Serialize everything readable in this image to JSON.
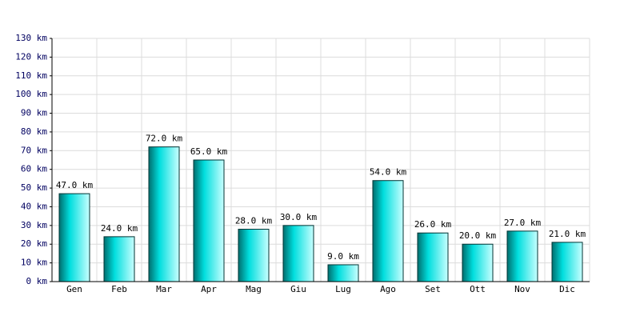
{
  "chart_data": {
    "type": "bar",
    "categories": [
      "Gen",
      "Feb",
      "Mar",
      "Apr",
      "Mag",
      "Giu",
      "Lug",
      "Ago",
      "Set",
      "Ott",
      "Nov",
      "Dic"
    ],
    "values": [
      47,
      24,
      72,
      65,
      28,
      30,
      9,
      54,
      26,
      20,
      27,
      21
    ],
    "value_labels": [
      "47.0 km",
      "24.0 km",
      "72.0 km",
      "65.0 km",
      "28.0 km",
      "30.0 km",
      "9.0 km",
      "54.0 km",
      "26.0 km",
      "20.0 km",
      "27.0 km",
      "21.0 km"
    ],
    "color": "#00dede",
    "ylim": [
      0,
      130
    ],
    "yticks": [
      {
        "value": 0,
        "label": "0 km"
      },
      {
        "value": 10,
        "label": "10 km"
      },
      {
        "value": 20,
        "label": "20 km"
      },
      {
        "value": 30,
        "label": "30 km"
      },
      {
        "value": 40,
        "label": "40 km"
      },
      {
        "value": 50,
        "label": "50 km"
      },
      {
        "value": 60,
        "label": "60 km"
      },
      {
        "value": 70,
        "label": "70 km"
      },
      {
        "value": 80,
        "label": "80 km"
      },
      {
        "value": 90,
        "label": "90 km"
      },
      {
        "value": 100,
        "label": "100 km"
      },
      {
        "value": 110,
        "label": "110 km"
      },
      {
        "value": 120,
        "label": "120 km"
      },
      {
        "value": 130,
        "label": "130 km"
      }
    ],
    "grid": true
  }
}
